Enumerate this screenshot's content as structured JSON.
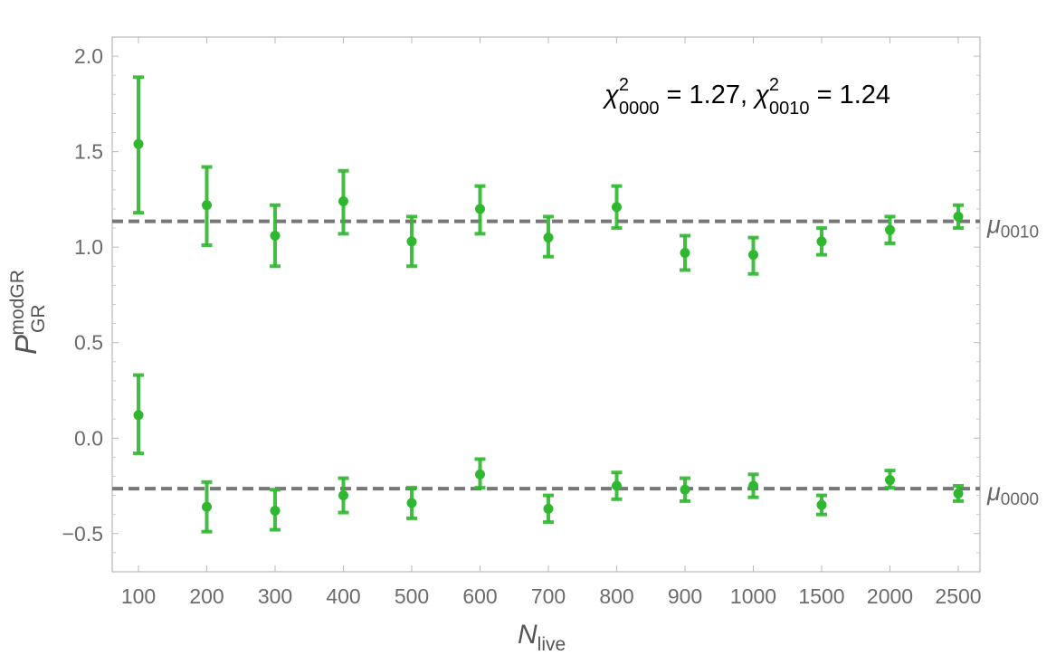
{
  "chart_data": {
    "type": "scatter",
    "categories": [
      "100",
      "200",
      "300",
      "400",
      "500",
      "600",
      "700",
      "800",
      "900",
      "1000",
      "1500",
      "2000",
      "2500"
    ],
    "ylim": [
      -0.7,
      2.1
    ],
    "yticks": [
      "−0.5",
      "0.0",
      "0.5",
      "1.0",
      "1.5",
      "2.0"
    ],
    "ytick_values": [
      -0.5,
      0.0,
      0.5,
      1.0,
      1.5,
      2.0
    ],
    "xlabel": {
      "main": "N",
      "sub": "live"
    },
    "ylabel": {
      "main": "P",
      "sub": "GR",
      "sup": "modGR"
    },
    "grid": false,
    "series": [
      {
        "values": [
          1.54,
          1.22,
          1.06,
          1.24,
          1.03,
          1.2,
          1.05,
          1.21,
          0.97,
          0.96,
          1.03,
          1.09,
          1.16
        ],
        "err_low": [
          1.18,
          1.01,
          0.9,
          1.07,
          0.9,
          1.07,
          0.95,
          1.1,
          0.88,
          0.86,
          0.96,
          1.02,
          1.1
        ],
        "err_high": [
          1.89,
          1.42,
          1.22,
          1.4,
          1.16,
          1.32,
          1.16,
          1.32,
          1.06,
          1.05,
          1.1,
          1.16,
          1.22
        ]
      },
      {
        "values": [
          0.12,
          -0.36,
          -0.38,
          -0.3,
          -0.34,
          -0.19,
          -0.37,
          -0.25,
          -0.27,
          -0.25,
          -0.35,
          -0.22,
          -0.29
        ],
        "err_low": [
          -0.08,
          -0.49,
          -0.48,
          -0.39,
          -0.42,
          -0.26,
          -0.44,
          -0.32,
          -0.33,
          -0.31,
          -0.4,
          -0.26,
          -0.33
        ],
        "err_high": [
          0.33,
          -0.23,
          -0.27,
          -0.21,
          -0.26,
          -0.11,
          -0.3,
          -0.18,
          -0.21,
          -0.19,
          -0.3,
          -0.17,
          -0.25
        ]
      }
    ],
    "reference_lines": [
      {
        "y": 1.135,
        "label_main": "μ",
        "label_sub": "0010"
      },
      {
        "y": -0.265,
        "label_main": "μ",
        "label_sub": "0000"
      }
    ],
    "annotation": {
      "sym1": "χ",
      "sup1": "2",
      "sub1": "0000",
      "val1": " = 1.27, ",
      "sym2": "χ",
      "sup2": "2",
      "sub2": "0010",
      "val2": " = 1.24"
    },
    "colors": {
      "points": "#2fb82f",
      "reference_line": "#777777",
      "frame": "#b8b8b8"
    }
  }
}
